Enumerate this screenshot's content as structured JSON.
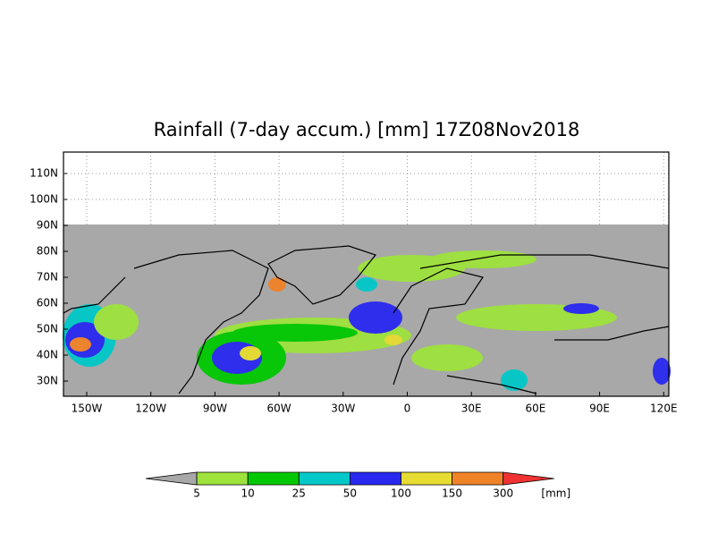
{
  "map": {
    "title": "Rainfall (7-day accum.) [mm] 17Z08Nov2018",
    "lat_labels": [
      "110N",
      "100N",
      "90N",
      "80N",
      "70N",
      "60N",
      "50N",
      "40N",
      "30N"
    ],
    "lon_labels": [
      "150W",
      "120W",
      "90W",
      "60W",
      "30W",
      "0",
      "30E",
      "60E",
      "90E",
      "120E"
    ],
    "legend": {
      "labels": [
        5,
        10,
        25,
        50,
        100,
        150,
        300
      ],
      "unit": "[mm]",
      "colors": [
        "#a8a8a8",
        "#9ee23c",
        "#00c800",
        "#00c8c8",
        "#2828f0",
        "#e6dc32",
        "#f08228",
        "#f03232"
      ]
    }
  }
}
